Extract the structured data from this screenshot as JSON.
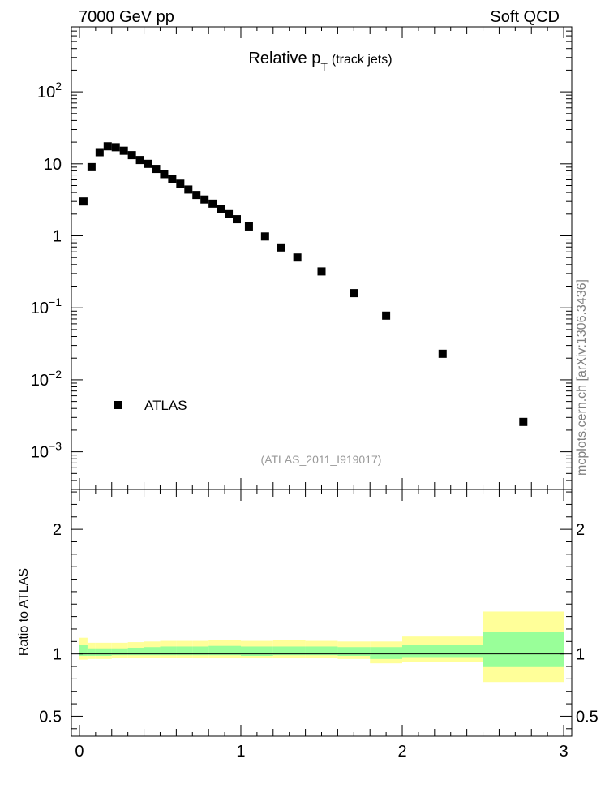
{
  "header": {
    "left": "7000 GeV pp",
    "right": "Soft QCD"
  },
  "side_label": "mcplots.cern.ch [arXiv:1306.3436]",
  "reference": "(ATLAS_2011_I919017)",
  "chart_data": [
    {
      "type": "scatter",
      "title_main": "Relative p",
      "title_sub": "T",
      "title_suffix": "(track jets)",
      "yscale": "log",
      "xlim": [
        -0.05,
        3.05
      ],
      "ylim": [
        0.0003,
        800
      ],
      "y_ticks": [
        {
          "value": 0.001,
          "base": "10",
          "exp": "−3"
        },
        {
          "value": 0.01,
          "base": "10",
          "exp": "−2"
        },
        {
          "value": 0.1,
          "base": "10",
          "exp": "−1"
        },
        {
          "value": 1,
          "base": "1",
          "exp": ""
        },
        {
          "value": 10,
          "base": "10",
          "exp": ""
        },
        {
          "value": 100,
          "base": "10",
          "exp": "2"
        }
      ],
      "legend": {
        "placement": "lower-left",
        "entries": [
          "ATLAS"
        ]
      },
      "series": [
        {
          "name": "ATLAS",
          "color": "#000000",
          "x": [
            0.025,
            0.075,
            0.125,
            0.175,
            0.225,
            0.275,
            0.325,
            0.375,
            0.425,
            0.475,
            0.525,
            0.575,
            0.625,
            0.675,
            0.725,
            0.775,
            0.825,
            0.875,
            0.925,
            0.975,
            1.05,
            1.15,
            1.25,
            1.35,
            1.5,
            1.7,
            1.9,
            2.25,
            2.75
          ],
          "y": [
            3.0,
            9.0,
            14.5,
            17.5,
            17.0,
            15.2,
            13.2,
            11.3,
            10.0,
            8.5,
            7.2,
            6.2,
            5.3,
            4.4,
            3.7,
            3.2,
            2.8,
            2.35,
            2.0,
            1.7,
            1.35,
            0.98,
            0.69,
            0.5,
            0.32,
            0.16,
            0.078,
            0.023,
            0.0026
          ]
        }
      ]
    },
    {
      "type": "area",
      "ylabel": "Ratio to ATLAS",
      "xlim": [
        -0.05,
        3.05
      ],
      "ylim": [
        0.34,
        2.32
      ],
      "x_ticks": [
        "0",
        "1",
        "2",
        "3"
      ],
      "x_tick_values": [
        0,
        1,
        2,
        3
      ],
      "y_ticks": [
        "0.5",
        "1",
        "2"
      ],
      "y_tick_values": [
        0.5,
        1,
        2
      ],
      "reference_line": 1,
      "colors": {
        "outer_band": "#ffff99",
        "inner_band": "#99ff99",
        "line": "#000000"
      },
      "bands": [
        {
          "x0": 0.0,
          "x1": 0.05,
          "outer": [
            0.955,
            1.13
          ],
          "inner": [
            0.985,
            1.07
          ]
        },
        {
          "x0": 0.05,
          "x1": 0.1,
          "outer": [
            0.96,
            1.09
          ],
          "inner": [
            0.985,
            1.045
          ]
        },
        {
          "x0": 0.1,
          "x1": 0.2,
          "outer": [
            0.96,
            1.09
          ],
          "inner": [
            0.985,
            1.045
          ]
        },
        {
          "x0": 0.2,
          "x1": 0.3,
          "outer": [
            0.965,
            1.09
          ],
          "inner": [
            0.99,
            1.045
          ]
        },
        {
          "x0": 0.3,
          "x1": 0.4,
          "outer": [
            0.965,
            1.095
          ],
          "inner": [
            0.99,
            1.05
          ]
        },
        {
          "x0": 0.4,
          "x1": 0.5,
          "outer": [
            0.97,
            1.1
          ],
          "inner": [
            0.99,
            1.055
          ]
        },
        {
          "x0": 0.5,
          "x1": 0.6,
          "outer": [
            0.97,
            1.105
          ],
          "inner": [
            0.99,
            1.06
          ]
        },
        {
          "x0": 0.6,
          "x1": 0.7,
          "outer": [
            0.97,
            1.105
          ],
          "inner": [
            0.99,
            1.06
          ]
        },
        {
          "x0": 0.7,
          "x1": 0.8,
          "outer": [
            0.965,
            1.105
          ],
          "inner": [
            0.99,
            1.06
          ]
        },
        {
          "x0": 0.8,
          "x1": 0.9,
          "outer": [
            0.965,
            1.11
          ],
          "inner": [
            0.99,
            1.065
          ]
        },
        {
          "x0": 0.9,
          "x1": 1.0,
          "outer": [
            0.965,
            1.11
          ],
          "inner": [
            0.99,
            1.065
          ]
        },
        {
          "x0": 1.0,
          "x1": 1.2,
          "outer": [
            0.965,
            1.105
          ],
          "inner": [
            0.985,
            1.06
          ]
        },
        {
          "x0": 1.2,
          "x1": 1.4,
          "outer": [
            0.965,
            1.11
          ],
          "inner": [
            0.99,
            1.06
          ]
        },
        {
          "x0": 1.4,
          "x1": 1.6,
          "outer": [
            0.965,
            1.105
          ],
          "inner": [
            0.99,
            1.06
          ]
        },
        {
          "x0": 1.6,
          "x1": 1.8,
          "outer": [
            0.96,
            1.1
          ],
          "inner": [
            0.985,
            1.055
          ]
        },
        {
          "x0": 1.8,
          "x1": 2.0,
          "outer": [
            0.925,
            1.1
          ],
          "inner": [
            0.96,
            1.055
          ]
        },
        {
          "x0": 2.0,
          "x1": 2.5,
          "outer": [
            0.935,
            1.14
          ],
          "inner": [
            0.975,
            1.07
          ]
        },
        {
          "x0": 2.5,
          "x1": 3.0,
          "outer": [
            0.775,
            1.34
          ],
          "inner": [
            0.895,
            1.175
          ]
        }
      ]
    }
  ]
}
